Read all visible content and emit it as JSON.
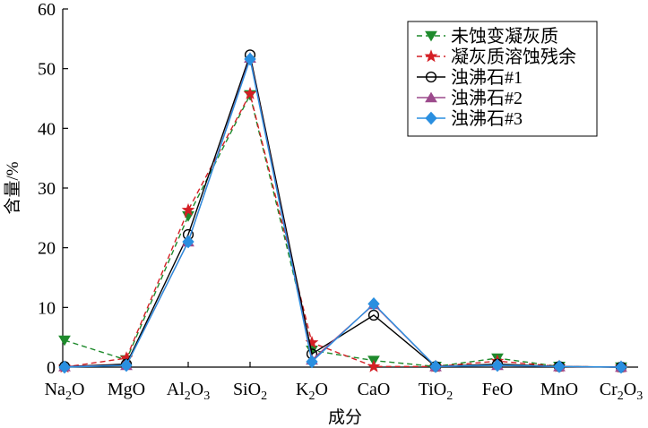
{
  "chart_data": {
    "type": "line",
    "categories": [
      {
        "base": "Na",
        "sub": "2",
        "tail": "O"
      },
      {
        "base": "MgO",
        "sub": "",
        "tail": ""
      },
      {
        "base": "Al",
        "sub": "2",
        "tail": "O",
        "sub2": "3"
      },
      {
        "base": "SiO",
        "sub": "2",
        "tail": ""
      },
      {
        "base": "K",
        "sub": "2",
        "tail": "O"
      },
      {
        "base": "CaO",
        "sub": "",
        "tail": ""
      },
      {
        "base": "TiO",
        "sub": "2",
        "tail": ""
      },
      {
        "base": "FeO",
        "sub": "",
        "tail": ""
      },
      {
        "base": "MnO",
        "sub": "",
        "tail": ""
      },
      {
        "base": "Cr",
        "sub": "2",
        "tail": "O",
        "sub2": "3"
      }
    ],
    "xlabel": "成分",
    "ylabel": "含量/%",
    "ylim": [
      0,
      60
    ],
    "yticks": [
      0,
      10,
      20,
      30,
      40,
      50,
      60
    ],
    "grid": false,
    "legend_position": "top-right",
    "series": [
      {
        "name": "未蚀变凝灰质",
        "color": "#1e8a2c",
        "dash": true,
        "marker": "triangle-down",
        "values": [
          4.5,
          1.2,
          25.3,
          45.6,
          2.8,
          1.1,
          0.1,
          1.5,
          0.1,
          0.0
        ]
      },
      {
        "name": "凝灰质溶蚀残余",
        "color": "#d41f25",
        "dash": true,
        "marker": "star",
        "values": [
          0.0,
          1.5,
          26.3,
          45.8,
          4.1,
          0.1,
          0.1,
          1.0,
          0.1,
          0.0
        ]
      },
      {
        "name": "浊沸石#1",
        "color": "#000000",
        "dash": false,
        "marker": "circle",
        "values": [
          0.1,
          0.5,
          22.2,
          52.3,
          2.2,
          8.7,
          0.1,
          0.5,
          0.1,
          0.0
        ]
      },
      {
        "name": "浊沸石#2",
        "color": "#9c4a8c",
        "dash": false,
        "marker": "triangle-up",
        "values": [
          0.1,
          0.3,
          21.0,
          51.8,
          1.2,
          10.5,
          0.1,
          0.3,
          0.1,
          0.0
        ]
      },
      {
        "name": "浊沸石#3",
        "color": "#2a8fe0",
        "dash": false,
        "marker": "diamond",
        "values": [
          0.0,
          0.3,
          21.0,
          51.6,
          0.9,
          10.6,
          0.1,
          0.3,
          0.1,
          0.0
        ]
      }
    ]
  }
}
